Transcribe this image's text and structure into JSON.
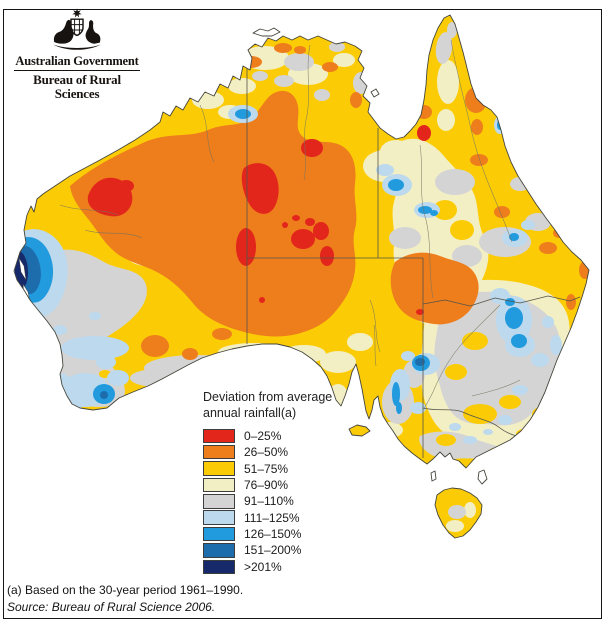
{
  "header": {
    "emblem_icon": "australian-coat-of-arms",
    "agency": "Australian Government",
    "department": "Bureau of Rural Sciences"
  },
  "map": {
    "region": "Australia",
    "description": "Choropleth map of deviation from average annual rainfall across Australia"
  },
  "legend": {
    "title_line1": "Deviation from average",
    "title_line2": "annual rainfall(a)",
    "items": [
      {
        "label": "0–25%",
        "color": "#e3261b"
      },
      {
        "label": "26–50%",
        "color": "#ee7d1c"
      },
      {
        "label": "51–75%",
        "color": "#fbcc06"
      },
      {
        "label": "76–90%",
        "color": "#f3efc4"
      },
      {
        "label": "91–110%",
        "color": "#d4d4d5"
      },
      {
        "label": "111–125%",
        "color": "#bcd9ee"
      },
      {
        "label": "126–150%",
        "color": "#229ade"
      },
      {
        "label": "151–200%",
        "color": "#1d6dad"
      },
      {
        "label": ">201%",
        "color": "#16296b"
      }
    ]
  },
  "footer": {
    "note": "(a) Based on the 30-year period 1961–1990.",
    "source": "Source: Bureau of Rural Science 2006."
  }
}
